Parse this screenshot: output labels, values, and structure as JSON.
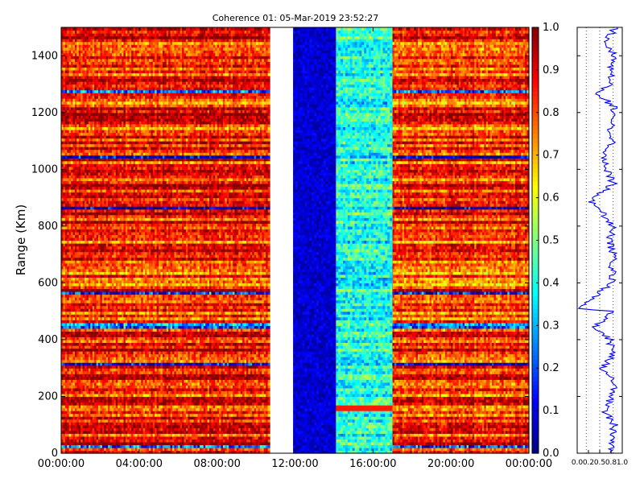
{
  "chart_data": [
    {
      "type": "heatmap",
      "title": "Coherence 01: 05-Mar-2019 23:52:27",
      "xlabel": "",
      "ylabel": "Range (Km)",
      "xlim_hours": [
        0,
        24
      ],
      "ylim": [
        0,
        1500
      ],
      "x_ticks": [
        "00:00:00",
        "04:00:00",
        "08:00:00",
        "12:00:00",
        "16:00:00",
        "20:00:00",
        "00:00:00"
      ],
      "y_ticks": [
        0,
        200,
        400,
        600,
        800,
        1000,
        1200,
        1400
      ],
      "colorbar": {
        "range": [
          0,
          1
        ],
        "ticks": [
          "0.0",
          "0.1",
          "0.2",
          "0.3",
          "0.4",
          "0.5",
          "0.6",
          "0.7",
          "0.8",
          "0.9",
          "1.0"
        ],
        "colormap": "jet"
      },
      "segments": [
        {
          "start_hour": 0.0,
          "end_hour": 10.7,
          "regime": "high",
          "mean_coherence": 0.85
        },
        {
          "start_hour": 10.7,
          "end_hour": 11.9,
          "regime": "no-data"
        },
        {
          "start_hour": 11.9,
          "end_hour": 14.1,
          "regime": "low",
          "mean_coherence": 0.08
        },
        {
          "start_hour": 14.1,
          "end_hour": 17.0,
          "regime": "medium",
          "mean_coherence": 0.4
        },
        {
          "start_hour": 17.0,
          "end_hour": 24.0,
          "regime": "high",
          "mean_coherence": 0.82
        }
      ],
      "low_coherence_rows_km": [
        20,
        310,
        445,
        560,
        860,
        1040,
        1270
      ]
    },
    {
      "type": "line",
      "title": "",
      "xlabel": "",
      "ylabel": "",
      "xlim": [
        0,
        1
      ],
      "x_ticks": [
        "0.0",
        "0.2",
        "0.5",
        "0.8",
        "1.0"
      ],
      "ylim": [
        0,
        1500
      ],
      "description": "mean coherence profile vs range",
      "profile": [
        {
          "range": 0,
          "value": 0.8
        },
        {
          "range": 50,
          "value": 0.75
        },
        {
          "range": 100,
          "value": 0.82
        },
        {
          "range": 150,
          "value": 0.6
        },
        {
          "range": 200,
          "value": 0.78
        },
        {
          "range": 250,
          "value": 0.83
        },
        {
          "range": 300,
          "value": 0.55
        },
        {
          "range": 350,
          "value": 0.8
        },
        {
          "range": 400,
          "value": 0.72
        },
        {
          "range": 445,
          "value": 0.4
        },
        {
          "range": 500,
          "value": 0.8
        },
        {
          "range": 510,
          "value": 0.05
        },
        {
          "range": 560,
          "value": 0.45
        },
        {
          "range": 600,
          "value": 0.8
        },
        {
          "range": 650,
          "value": 0.78
        },
        {
          "range": 700,
          "value": 0.82
        },
        {
          "range": 750,
          "value": 0.7
        },
        {
          "range": 800,
          "value": 0.8
        },
        {
          "range": 860,
          "value": 0.5
        },
        {
          "range": 890,
          "value": 0.3
        },
        {
          "range": 950,
          "value": 0.8
        },
        {
          "range": 1040,
          "value": 0.55
        },
        {
          "range": 1100,
          "value": 0.8
        },
        {
          "range": 1150,
          "value": 0.75
        },
        {
          "range": 1220,
          "value": 0.8
        },
        {
          "range": 1270,
          "value": 0.45
        },
        {
          "range": 1300,
          "value": 0.8
        },
        {
          "range": 1350,
          "value": 0.7
        },
        {
          "range": 1400,
          "value": 0.82
        },
        {
          "range": 1450,
          "value": 0.65
        },
        {
          "range": 1500,
          "value": 0.85
        }
      ]
    }
  ],
  "colors": {
    "no_data": "#ffffff",
    "profile_line": "#0000ff",
    "grid_dotted": "#000000"
  }
}
